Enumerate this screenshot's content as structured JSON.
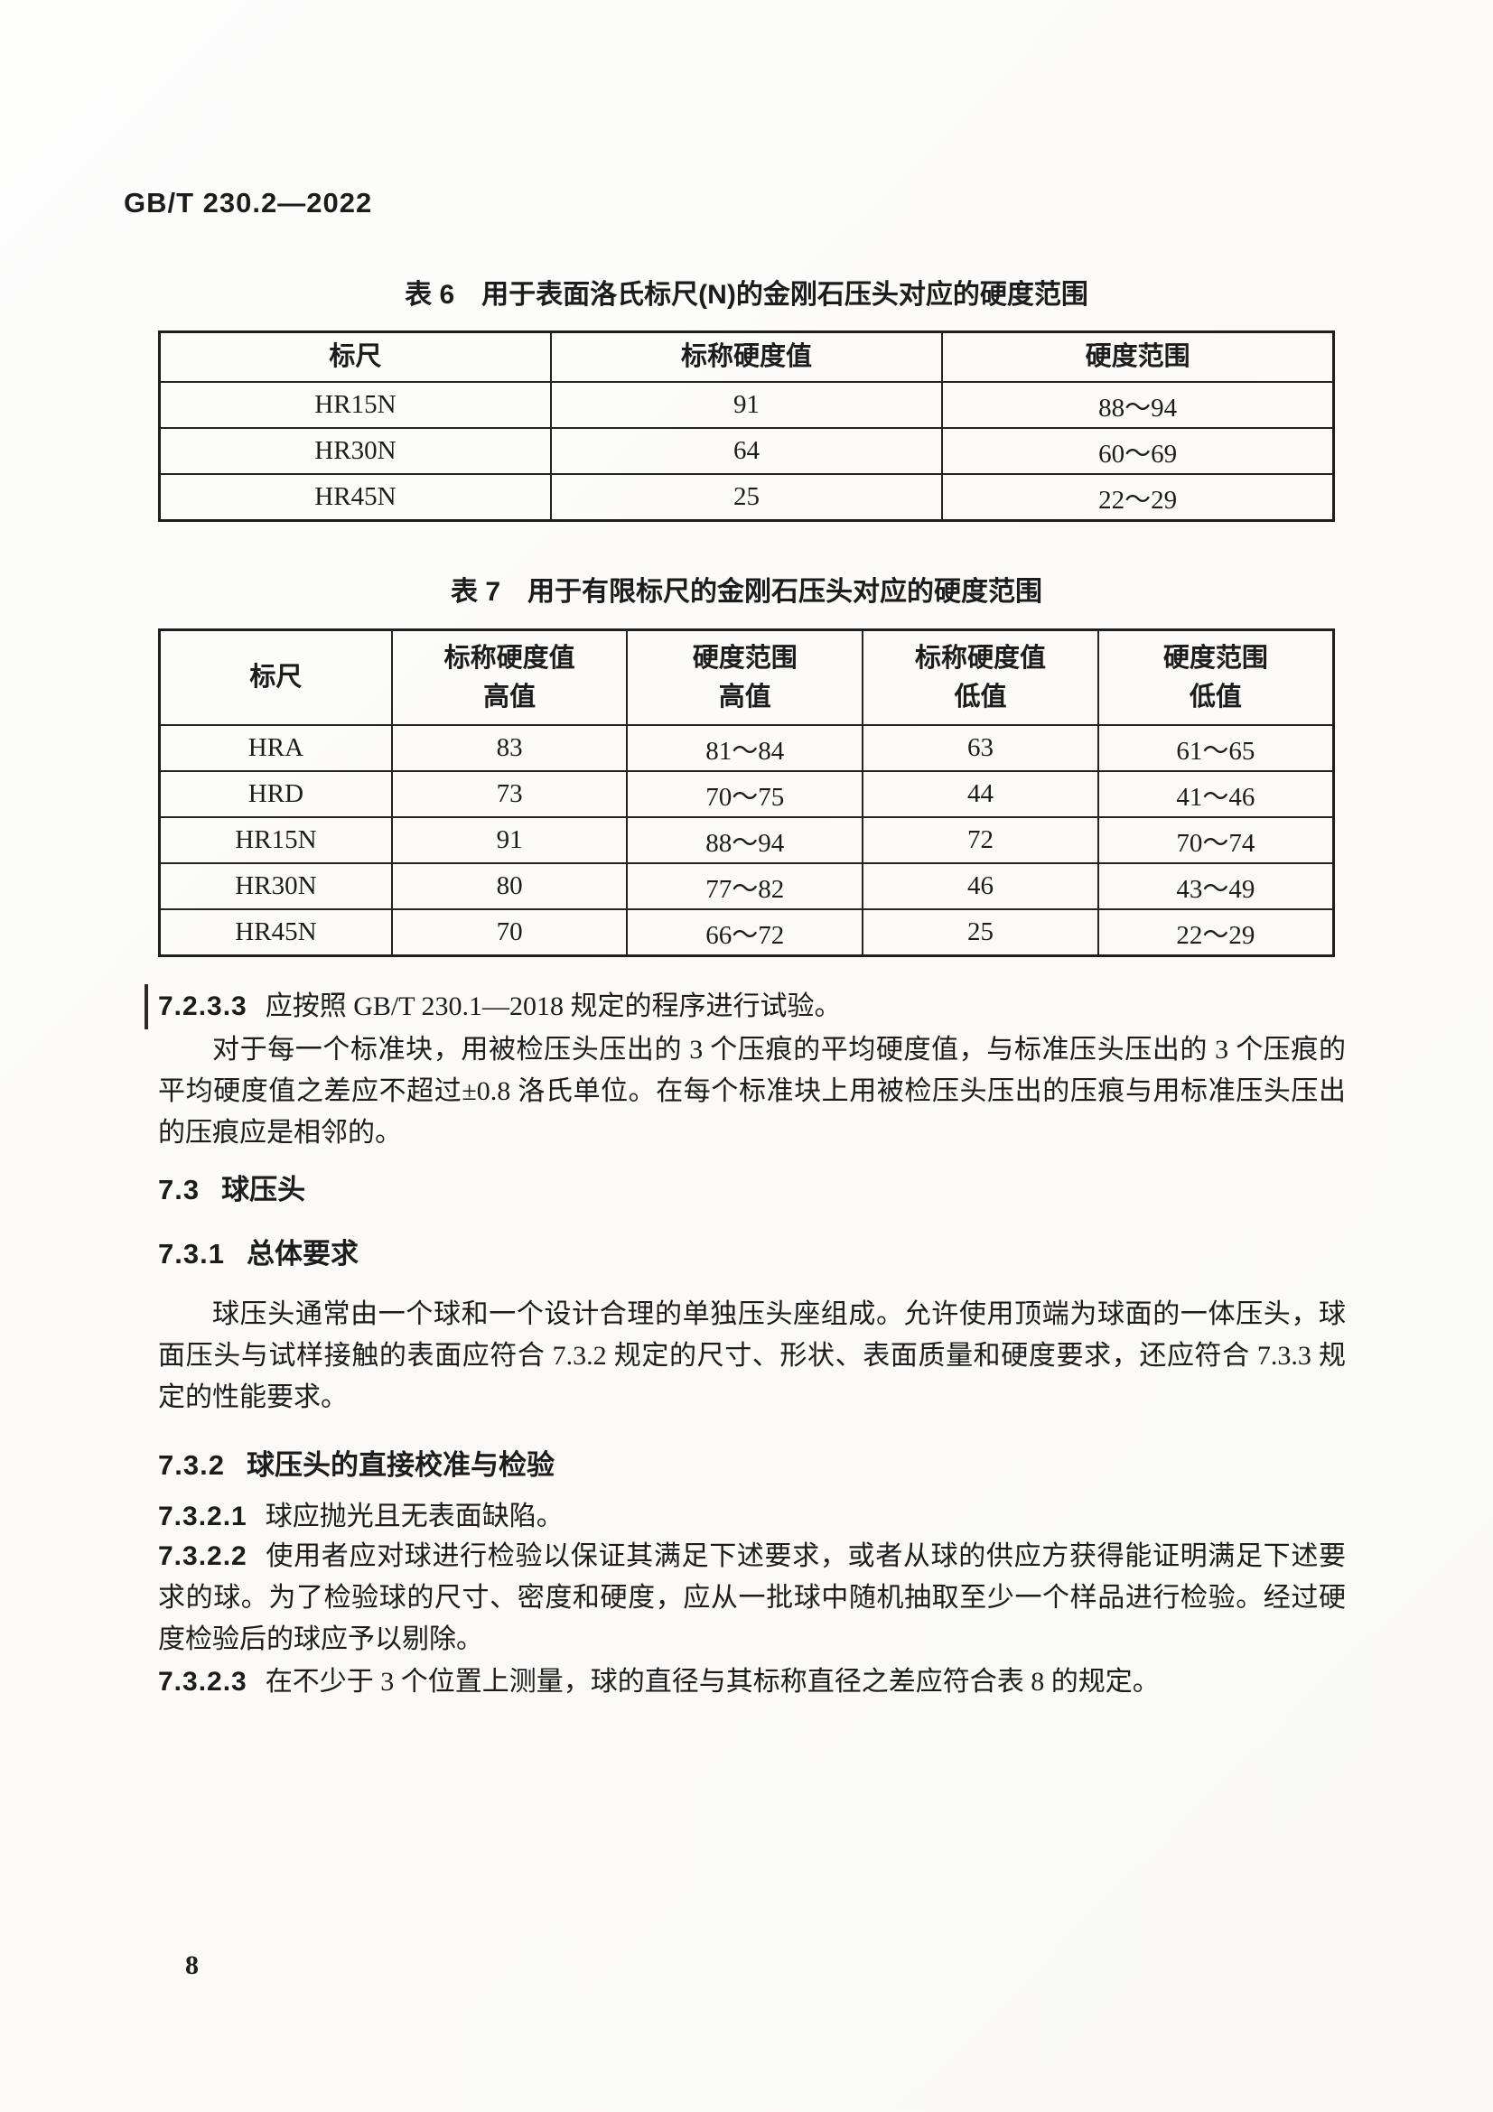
{
  "header": {
    "doc_number": "GB/T 230.2—2022"
  },
  "footer": {
    "page_number": "8"
  },
  "table6": {
    "caption": "表 6　用于表面洛氏标尺(N)的金刚石压头对应的硬度范围",
    "headers": [
      "标尺",
      "标称硬度值",
      "硬度范围"
    ],
    "rows": [
      [
        "HR15N",
        "91",
        "88～94"
      ],
      [
        "HR30N",
        "64",
        "60～69"
      ],
      [
        "HR45N",
        "25",
        "22～29"
      ]
    ]
  },
  "table7": {
    "caption": "表 7　用于有限标尺的金刚石压头对应的硬度范围",
    "headers": [
      "标尺",
      "标称硬度值\n高值",
      "硬度范围\n高值",
      "标称硬度值\n低值",
      "硬度范围\n低值"
    ],
    "rows": [
      [
        "HRA",
        "83",
        "81～84",
        "63",
        "61～65"
      ],
      [
        "HRD",
        "73",
        "70～75",
        "44",
        "41～46"
      ],
      [
        "HR15N",
        "91",
        "88～94",
        "72",
        "70～74"
      ],
      [
        "HR30N",
        "80",
        "77～82",
        "46",
        "43～49"
      ],
      [
        "HR45N",
        "70",
        "66～72",
        "25",
        "22～29"
      ]
    ]
  },
  "clauses": {
    "c7233": {
      "num": "7.2.3.3",
      "text": "应按照 GB/T 230.1—2018 规定的程序进行试验。"
    },
    "p1": "对于每一个标准块，用被检压头压出的 3 个压痕的平均硬度值，与标准压头压出的 3 个压痕的平均硬度值之差应不超过±0.8 洛氏单位。在每个标准块上用被检压头压出的压痕与用标准压头压出的压痕应是相邻的。",
    "h73": {
      "num": "7.3",
      "text": "球压头"
    },
    "h731": {
      "num": "7.3.1",
      "text": "总体要求"
    },
    "p2": "球压头通常由一个球和一个设计合理的单独压头座组成。允许使用顶端为球面的一体压头，球面压头与试样接触的表面应符合 7.3.2 规定的尺寸、形状、表面质量和硬度要求，还应符合 7.3.3 规定的性能要求。",
    "h732": {
      "num": "7.3.2",
      "text": "球压头的直接校准与检验"
    },
    "c7321": {
      "num": "7.3.2.1",
      "text": "球应抛光且无表面缺陷。"
    },
    "c7322": {
      "num": "7.3.2.2",
      "text": "使用者应对球进行检验以保证其满足下述要求，或者从球的供应方获得能证明满足下述要求的球。为了检验球的尺寸、密度和硬度，应从一批球中随机抽取至少一个样品进行检验。经过硬度检验后的球应予以剔除。"
    },
    "c7323": {
      "num": "7.3.2.3",
      "text": "在不少于 3 个位置上测量，球的直径与其标称直径之差应符合表 8 的规定。"
    }
  }
}
